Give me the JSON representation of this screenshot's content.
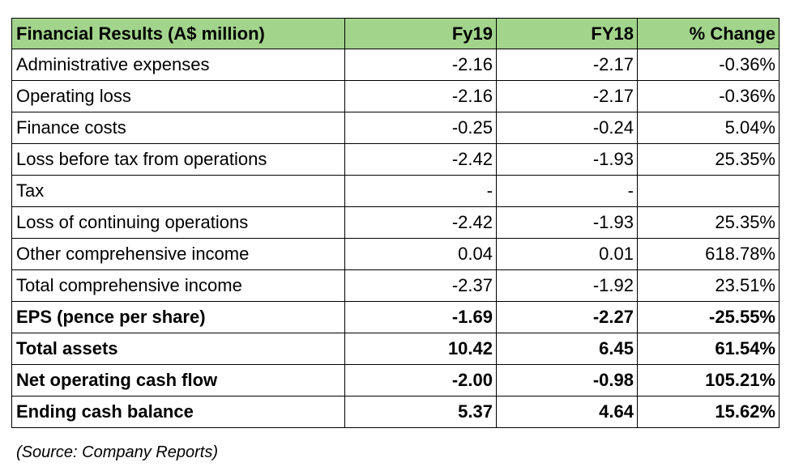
{
  "table": {
    "headers": [
      "Financial Results (A$ million)",
      "Fy19",
      "FY18",
      "% Change"
    ],
    "rows": [
      {
        "label": "Administrative expenses",
        "fy19": "-2.16",
        "fy18": "-2.17",
        "change": "-0.36%",
        "bold": false
      },
      {
        "label": "Operating loss",
        "fy19": "-2.16",
        "fy18": "-2.17",
        "change": "-0.36%",
        "bold": false
      },
      {
        "label": "Finance costs",
        "fy19": "-0.25",
        "fy18": "-0.24",
        "change": "5.04%",
        "bold": false
      },
      {
        "label": "Loss before tax from operations",
        "fy19": "-2.42",
        "fy18": "-1.93",
        "change": "25.35%",
        "bold": false
      },
      {
        "label": "Tax",
        "fy19": "-",
        "fy18": "-",
        "change": "",
        "bold": false
      },
      {
        "label": "Loss of continuing operations",
        "fy19": "-2.42",
        "fy18": "-1.93",
        "change": "25.35%",
        "bold": false
      },
      {
        "label": "Other comprehensive income",
        "fy19": "0.04",
        "fy18": "0.01",
        "change": "618.78%",
        "bold": false
      },
      {
        "label": "Total comprehensive income",
        "fy19": "-2.37",
        "fy18": "-1.92",
        "change": "23.51%",
        "bold": false
      },
      {
        "label": "EPS (pence per share)",
        "fy19": "-1.69",
        "fy18": "-2.27",
        "change": "-25.55%",
        "bold": true
      },
      {
        "label": "Total assets",
        "fy19": "10.42",
        "fy18": "6.45",
        "change": "61.54%",
        "bold": true
      },
      {
        "label": "Net operating cash flow",
        "fy19": "-2.00",
        "fy18": "-0.98",
        "change": "105.21%",
        "bold": true
      },
      {
        "label": "Ending cash balance",
        "fy19": "5.37",
        "fy18": "4.64",
        "change": "15.62%",
        "bold": true
      }
    ]
  },
  "source": "(Source: Company Reports)",
  "colors": {
    "header_bg": "#a2d48c",
    "border": "#000000"
  }
}
